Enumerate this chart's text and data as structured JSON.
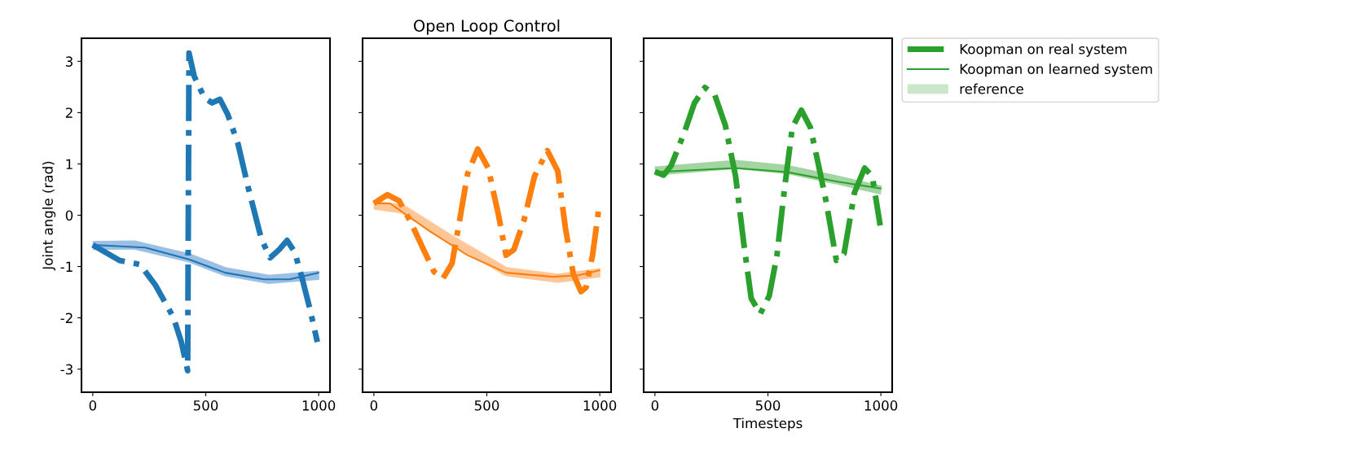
{
  "chart_data": [
    {
      "type": "line",
      "ylabel": "Joint angle (rad)",
      "xlim": [
        -50,
        1050
      ],
      "xticks": [
        0,
        500,
        1000
      ],
      "ylim": [
        -3.45,
        3.45
      ],
      "yticks": [
        -3,
        -2,
        -1,
        0,
        1,
        2,
        3
      ],
      "legend": false,
      "marker": "none",
      "series": [
        {
          "color": "#c6dbef",
          "line_style": "solid",
          "x": [
            0,
            185,
            426,
            586,
            780,
            1002
          ],
          "values": [
            -0.59,
            -0.58,
            -0.83,
            -1.1,
            -1.25,
            -1.17
          ],
          "lower": [
            -0.68,
            -0.67,
            -0.92,
            -1.19,
            -1.34,
            -1.26
          ],
          "upper": [
            -0.5,
            -0.49,
            -0.74,
            -1.01,
            -1.16,
            -1.08
          ]
        },
        {
          "color": "#1f77b4",
          "line_style": "dashdot",
          "x": [
            0,
            118,
            209,
            277,
            357,
            392,
            420,
            426,
            449,
            494,
            528,
            563,
            597,
            643,
            688,
            746,
            785,
            825,
            860,
            894,
            928,
            962,
            994
          ],
          "values": [
            -0.58,
            -0.88,
            -0.96,
            -1.36,
            -1.99,
            -2.47,
            -3.03,
            3.16,
            2.71,
            2.29,
            2.19,
            2.26,
            1.97,
            1.39,
            0.54,
            -0.46,
            -0.83,
            -0.67,
            -0.49,
            -0.72,
            -1.25,
            -1.84,
            -2.47
          ]
        },
        {
          "color": "#1f77b4",
          "line_style": "solid",
          "x": [
            0,
            232,
            426,
            586,
            757,
            871,
            1002
          ],
          "values": [
            -0.58,
            -0.63,
            -0.86,
            -1.12,
            -1.25,
            -1.25,
            -1.12
          ]
        }
      ]
    },
    {
      "type": "line",
      "title": "Open Loop Control",
      "xlim": [
        -50,
        1050
      ],
      "xticks": [
        0,
        500,
        1000
      ],
      "ylim": [
        -3.45,
        3.45
      ],
      "yticks": [
        -3,
        -2,
        -1,
        0,
        1,
        2,
        3
      ],
      "tick_labels": "x",
      "legend": false,
      "marker": "none",
      "series": [
        {
          "color": "#ffdfc4",
          "line_style": "solid",
          "x": [
            0,
            129,
            357,
            586,
            814,
            1002
          ],
          "values": [
            0.2,
            0.12,
            -0.51,
            -1.1,
            -1.23,
            -1.12
          ],
          "lower": [
            0.11,
            0.03,
            -0.6,
            -1.19,
            -1.32,
            -1.21
          ],
          "upper": [
            0.29,
            0.21,
            -0.42,
            -1.01,
            -1.14,
            -1.03
          ]
        },
        {
          "color": "#ff7f0e",
          "line_style": "dashdot",
          "x": [
            0,
            60,
            112,
            164,
            220,
            266,
            306,
            346,
            380,
            415,
            460,
            506,
            551,
            585,
            620,
            665,
            711,
            768,
            814,
            848,
            883,
            917,
            939,
            968,
            994
          ],
          "values": [
            0.23,
            0.4,
            0.28,
            -0.14,
            -0.67,
            -1.1,
            -1.23,
            -0.94,
            -0.09,
            0.81,
            1.29,
            0.92,
            0.02,
            -0.78,
            -0.67,
            -0.09,
            0.76,
            1.26,
            0.86,
            -0.25,
            -1.15,
            -1.49,
            -1.41,
            -0.78,
            0.07
          ]
        },
        {
          "color": "#ff7f0e",
          "line_style": "solid",
          "x": [
            0,
            72,
            243,
            415,
            586,
            791,
            905,
            1002
          ],
          "values": [
            0.23,
            0.23,
            -0.3,
            -0.78,
            -1.12,
            -1.2,
            -1.17,
            -1.07
          ]
        }
      ]
    },
    {
      "type": "line",
      "xlabel": "Timesteps",
      "xlim": [
        -50,
        1050
      ],
      "xticks": [
        0,
        500,
        1000
      ],
      "ylim": [
        -3.45,
        3.45
      ],
      "yticks": [
        -3,
        -2,
        -1,
        0,
        1,
        2,
        3
      ],
      "tick_labels": "x",
      "legend": "right",
      "marker": "none",
      "series": [
        {
          "name": "Koopman on real system",
          "color": "#2ca02c",
          "line_style": "dashdot",
          "x": [
            0,
            38,
            72,
            129,
            175,
            221,
            265,
            311,
            357,
            392,
            426,
            466,
            506,
            540,
            574,
            608,
            648,
            688,
            722,
            757,
            803,
            837,
            883,
            928,
            962,
            997
          ],
          "values": [
            0.85,
            0.78,
            0.97,
            1.6,
            2.19,
            2.49,
            2.34,
            1.76,
            0.76,
            -0.51,
            -1.62,
            -1.92,
            -1.57,
            -0.78,
            0.54,
            1.71,
            2.05,
            1.71,
            1.02,
            0.28,
            -0.88,
            -0.75,
            0.44,
            0.92,
            0.76,
            -0.2
          ]
        },
        {
          "name": "Koopman on learned system",
          "color": "#2ca02c",
          "line_style": "solid",
          "x": [
            0,
            357,
            586,
            814,
            1002
          ],
          "values": [
            0.84,
            0.92,
            0.84,
            0.65,
            0.52
          ]
        },
        {
          "name": "reference",
          "color": "#cae7ca",
          "line_style": "solid",
          "x": [
            0,
            357,
            586,
            814,
            1002
          ],
          "values": [
            0.86,
            0.99,
            0.89,
            0.68,
            0.49
          ],
          "lower": [
            0.77,
            0.9,
            0.8,
            0.59,
            0.4
          ],
          "upper": [
            0.95,
            1.08,
            0.98,
            0.77,
            0.58
          ]
        }
      ]
    }
  ]
}
